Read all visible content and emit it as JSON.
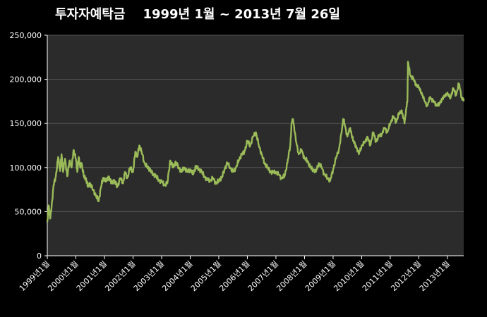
{
  "chart_data": {
    "type": "line",
    "title": "투자자예탁금    1999년 1월 ~ 2013년 7월 26일",
    "xlabel": "",
    "ylabel": "",
    "ylim": [
      0,
      250000
    ],
    "yticks": [
      "0",
      "50,000",
      "100,000",
      "150,000",
      "200,000",
      "250,000"
    ],
    "ytick_values": [
      0,
      50000,
      100000,
      150000,
      200000,
      250000
    ],
    "xlim": [
      1999.0,
      2013.57
    ],
    "xticks": [
      "1999년1월",
      "2000년1월",
      "2001년1월",
      "2002년1월",
      "2003년1월",
      "2004년1월",
      "2005년1월",
      "2006년1월",
      "2007년1월",
      "2008년1월",
      "2009년1월",
      "2010년1월",
      "2011년1월",
      "2012년1월",
      "2013년1월"
    ],
    "xtick_values": [
      1999,
      2000,
      2001,
      2002,
      2003,
      2004,
      2005,
      2006,
      2007,
      2008,
      2009,
      2010,
      2011,
      2012,
      2013
    ],
    "grid": true,
    "colors": {
      "background": "#000000",
      "plot_area": "#2b2b2b",
      "line": "#9bbb59",
      "grid": "#555555",
      "axis": "#ffffff"
    },
    "series": [
      {
        "x": [
          1999.0,
          1999.05,
          1999.1,
          1999.15,
          1999.22,
          1999.3,
          1999.38,
          1999.45,
          1999.5,
          1999.55,
          1999.62,
          1999.7,
          1999.78,
          1999.85,
          1999.92,
          2000.0,
          2000.05,
          2000.1,
          2000.15,
          2000.2,
          2000.28,
          2000.35,
          2000.42,
          2000.5,
          2000.6,
          2000.7,
          2000.8,
          2000.88,
          2000.95,
          2001.05,
          2001.15,
          2001.25,
          2001.35,
          2001.45,
          2001.55,
          2001.65,
          2001.72,
          2001.8,
          2001.9,
          2002.0,
          2002.08,
          2002.15,
          2002.22,
          2002.3,
          2002.4,
          2002.5,
          2002.6,
          2002.7,
          2002.8,
          2002.9,
          2003.0,
          2003.1,
          2003.2,
          2003.3,
          2003.4,
          2003.5,
          2003.6,
          2003.7,
          2003.8,
          2003.9,
          2004.0,
          2004.1,
          2004.2,
          2004.3,
          2004.4,
          2004.5,
          2004.6,
          2004.7,
          2004.8,
          2004.9,
          2005.0,
          2005.1,
          2005.2,
          2005.3,
          2005.4,
          2005.5,
          2005.6,
          2005.7,
          2005.8,
          2005.9,
          2006.0,
          2006.1,
          2006.2,
          2006.3,
          2006.4,
          2006.5,
          2006.6,
          2006.7,
          2006.8,
          2006.9,
          2007.0,
          2007.1,
          2007.2,
          2007.3,
          2007.4,
          2007.5,
          2007.55,
          2007.6,
          2007.7,
          2007.8,
          2007.9,
          2008.0,
          2008.1,
          2008.2,
          2008.3,
          2008.4,
          2008.5,
          2008.6,
          2008.7,
          2008.8,
          2008.9,
          2009.0,
          2009.1,
          2009.2,
          2009.3,
          2009.35,
          2009.4,
          2009.5,
          2009.6,
          2009.7,
          2009.8,
          2009.9,
          2010.0,
          2010.1,
          2010.2,
          2010.3,
          2010.4,
          2010.5,
          2010.6,
          2010.7,
          2010.8,
          2010.9,
          2011.0,
          2011.1,
          2011.2,
          2011.3,
          2011.4,
          2011.5,
          2011.55,
          2011.6,
          2011.62,
          2011.7,
          2011.8,
          2011.9,
          2012.0,
          2012.1,
          2012.2,
          2012.3,
          2012.4,
          2012.5,
          2012.6,
          2012.7,
          2012.8,
          2012.9,
          2013.0,
          2013.1,
          2013.2,
          2013.3,
          2013.4,
          2013.5,
          2013.57
        ],
        "values": [
          38000,
          57000,
          42000,
          55000,
          80000,
          90000,
          112000,
          96000,
          115000,
          95000,
          110000,
          90000,
          108000,
          100000,
          120000,
          110000,
          95000,
          112000,
          100000,
          105000,
          90000,
          88000,
          78000,
          82000,
          75000,
          68000,
          62000,
          78000,
          88000,
          84000,
          90000,
          82000,
          85000,
          78000,
          88000,
          82000,
          95000,
          88000,
          100000,
          95000,
          118000,
          112000,
          125000,
          118000,
          105000,
          100000,
          98000,
          92000,
          90000,
          86000,
          84000,
          80000,
          82000,
          108000,
          100000,
          106000,
          100000,
          95000,
          100000,
          95000,
          98000,
          92000,
          102000,
          98000,
          95000,
          90000,
          86000,
          85000,
          88000,
          82000,
          85000,
          88000,
          98000,
          105000,
          100000,
          95000,
          100000,
          108000,
          115000,
          118000,
          130000,
          125000,
          135000,
          140000,
          125000,
          115000,
          105000,
          100000,
          96000,
          94000,
          95000,
          92000,
          88000,
          90000,
          105000,
          125000,
          150000,
          155000,
          130000,
          115000,
          120000,
          110000,
          108000,
          100000,
          98000,
          95000,
          105000,
          100000,
          92000,
          88000,
          85000,
          98000,
          110000,
          120000,
          140000,
          155000,
          150000,
          135000,
          145000,
          130000,
          125000,
          115000,
          125000,
          128000,
          135000,
          125000,
          140000,
          130000,
          135000,
          138000,
          145000,
          140000,
          150000,
          158000,
          152000,
          160000,
          165000,
          150000,
          165000,
          175000,
          220000,
          205000,
          200000,
          195000,
          190000,
          185000,
          175000,
          170000,
          180000,
          175000,
          172000,
          170000,
          178000,
          180000,
          185000,
          178000,
          190000,
          182000,
          195000,
          180000,
          175000
        ]
      }
    ]
  }
}
